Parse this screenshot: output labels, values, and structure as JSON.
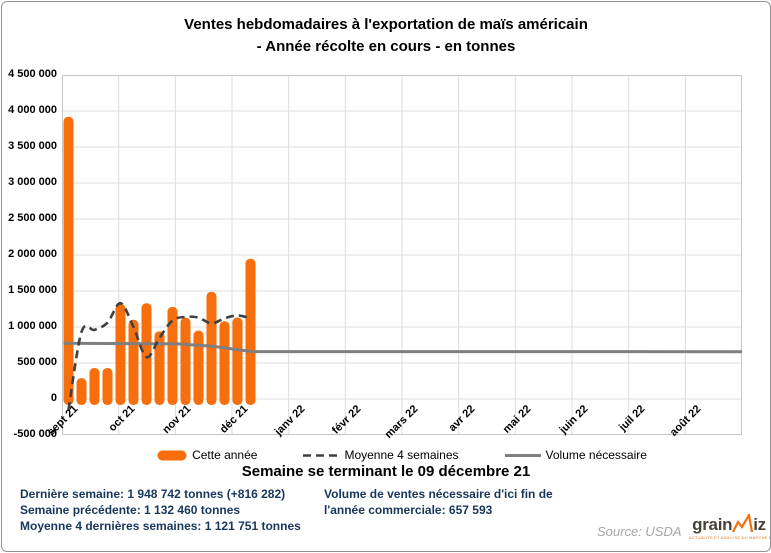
{
  "title": {
    "line1": "Ventes hebdomadaires à l'exportation de maïs américain",
    "line2": "- Année récolte en cours - en tonnes"
  },
  "subtitle": "Semaine se terminant le 09 décembre 21",
  "colors": {
    "bar_orange": "#F76E0C",
    "ma_dashed": "#404040",
    "volume_gray": "#7F7F7F",
    "footer_navy": "#17375D",
    "source_gray": "#A6A6A6",
    "logo_brown": "#4A4238"
  },
  "chart_data": {
    "type": "bar",
    "title": "Ventes hebdomadaires à l'exportation de maïs américain - Année récolte en cours - en tonnes",
    "ylim": [
      -500000,
      4500000
    ],
    "y_axis": {
      "min": -500000,
      "max": 4500000,
      "step": 500000,
      "tick_labels": [
        "4 500 000",
        "4 000 000",
        "3 500 000",
        "3 000 000",
        "2 500 000",
        "2 000 000",
        "1 500 000",
        "1 000 000",
        "500 000",
        "0",
        "-500 000"
      ]
    },
    "x_axis": {
      "month_labels": [
        "sept 21",
        "oct 21",
        "nov 21",
        "déc 21",
        "janv 22",
        "févr 22",
        "mars 22",
        "avr 22",
        "mai 22",
        "juin 22",
        "juil 22",
        "août 22"
      ],
      "months_total": 12
    },
    "grid": true,
    "legend_position": "bottom",
    "bars": {
      "name": "Cette année",
      "color": "#F76E0C",
      "values": [
        3920000,
        290000,
        430000,
        430000,
        1320000,
        1100000,
        1330000,
        940000,
        1280000,
        1130000,
        950000,
        1490000,
        1080000,
        1132460,
        1948742
      ]
    },
    "moving_average": {
      "name": "Moyenne 4 semaines",
      "color": "#404040",
      "style": "dashed",
      "values": [
        -150000,
        930000,
        960000,
        1060000,
        1330000,
        1000000,
        580000,
        850000,
        1090000,
        1140000,
        1130000,
        1050000,
        1120000,
        1160000,
        1121751
      ]
    },
    "volume_line": {
      "name": "Volume nécessaire",
      "color": "#7F7F7F",
      "points": [
        [
          0.002,
          775000
        ],
        [
          0.17,
          765000
        ],
        [
          0.22,
          735000
        ],
        [
          0.28,
          658000
        ],
        [
          1.0,
          657593
        ]
      ]
    }
  },
  "legend": {
    "items": [
      {
        "label": "Cette année"
      },
      {
        "label": "Moyenne 4 semaines"
      },
      {
        "label": "Volume nécessaire"
      }
    ]
  },
  "footer": {
    "left_lines": [
      "Dernière semaine: 1 948 742 tonnes (+816 282)",
      "Semaine précédente: 1 132 460 tonnes",
      "Moyenne 4 dernières semaines: 1 121 751 tonnes"
    ],
    "right_lines": [
      "Volume de ventes nécessaire d'ici fin de",
      "l'année commerciale: 657 593"
    ]
  },
  "source": "Source:  USDA",
  "logo": {
    "text_pre": "grain",
    "text_post": "iz",
    "tagline": "ACTUALITÉ ET ANALYSE DU MARCHÉ DES GRAINS"
  }
}
